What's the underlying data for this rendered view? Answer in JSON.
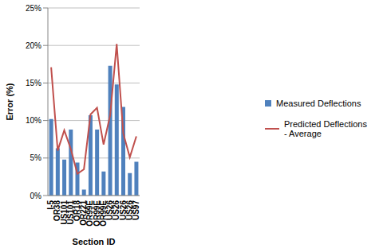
{
  "chart_data": {
    "type": "bar",
    "x_label": "Section ID",
    "y_label": "Error (%)",
    "categories": [
      "I-5",
      "OR38",
      "US101",
      "US101",
      "OR18",
      "OR221",
      "OR99E",
      "OR99E",
      "OR99E",
      "US26",
      "US26",
      "US26",
      "US26",
      "US97"
    ],
    "series": [
      {
        "name": "Measured Deflections",
        "type": "bar",
        "color": "#4f81bd",
        "values": [
          10.2,
          6.3,
          4.8,
          8.8,
          4.4,
          0.8,
          10.7,
          8.8,
          3.2,
          17.3,
          14.8,
          11.8,
          3.0,
          4.5
        ]
      },
      {
        "name": "Predicted Deflections - Average",
        "type": "line",
        "color": "#c0504d",
        "marker": "none",
        "values": [
          17.1,
          6.0,
          8.7,
          6.2,
          2.9,
          3.5,
          10.8,
          11.7,
          6.8,
          10.7,
          20.2,
          8.3,
          5.1,
          7.9
        ]
      }
    ],
    "ylim": [
      0,
      25
    ],
    "yticks": [
      {
        "value": 0,
        "label": "0%"
      },
      {
        "value": 5,
        "label": "5%"
      },
      {
        "value": 10,
        "label": "10%"
      },
      {
        "value": 15,
        "label": "15%"
      },
      {
        "value": 20,
        "label": "20%"
      },
      {
        "value": 25,
        "label": "25%"
      }
    ],
    "grid": true,
    "legend": "right"
  }
}
